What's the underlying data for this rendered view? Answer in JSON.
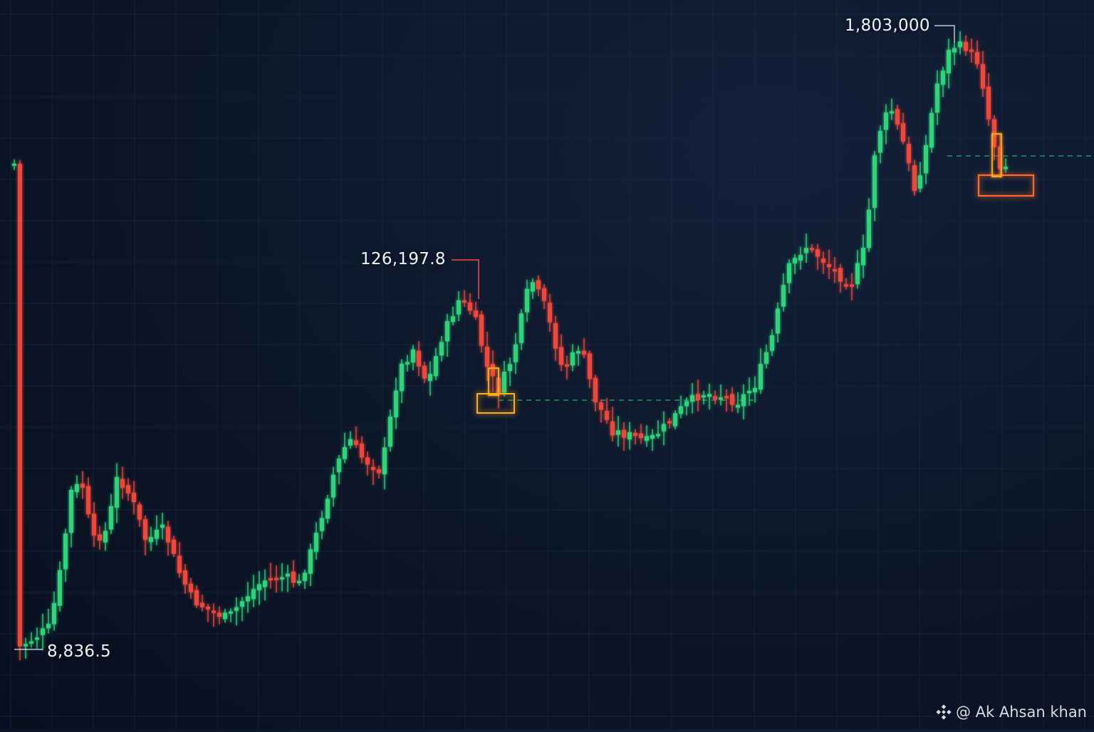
{
  "chart_data": {
    "type": "candlestick",
    "title": "",
    "xlabel": "",
    "ylabel": "",
    "grid": true,
    "colors": {
      "up": "#2fd37a",
      "down": "#f0463a",
      "resistance": "#ff3b30",
      "support": "#2fd37a",
      "highlight": "#ffb020"
    },
    "annotations": [
      {
        "id": "low",
        "text": "8,836.5"
      },
      {
        "id": "mid",
        "text": "126,197.8"
      },
      {
        "id": "high",
        "text": "1,803,000"
      }
    ],
    "note": "Price scale not printed on the chart; only the three annotated levels are labeled."
  },
  "watermark": {
    "text": "@ Ak Ahsan khan",
    "icon": "binance-logo-icon"
  }
}
